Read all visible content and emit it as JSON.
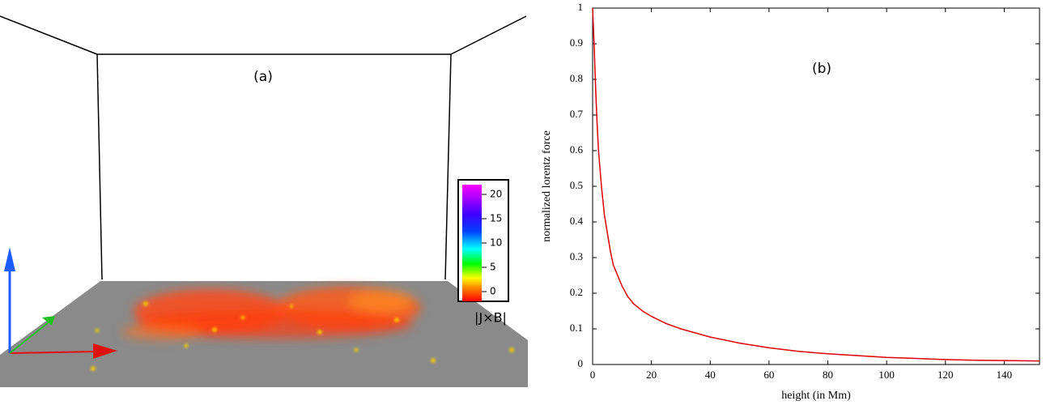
{
  "chart_data": [
    {
      "type": "colorbar",
      "title": "(a)",
      "colorbar_label": "|J×B|",
      "clim": [
        -2,
        22
      ],
      "cticks": [
        0,
        5,
        10,
        15,
        20
      ]
    },
    {
      "type": "line",
      "title": "(b)",
      "x_label": "height (in Mm)",
      "y_label": "normalized lorentz force",
      "x": [
        0,
        0.5,
        1,
        1.5,
        2,
        3,
        4,
        5,
        6,
        7,
        8,
        10,
        12,
        14,
        17,
        20,
        25,
        30,
        40,
        50,
        60,
        70,
        80,
        90,
        100,
        110,
        120,
        130,
        140,
        152
      ],
      "series": [
        {
          "color": "#dd0000",
          "values": [
            1,
            0.9,
            0.78,
            0.68,
            0.6,
            0.5,
            0.42,
            0.37,
            0.32,
            0.28,
            0.26,
            0.22,
            0.19,
            0.17,
            0.15,
            0.135,
            0.115,
            0.1,
            0.077,
            0.06,
            0.047,
            0.037,
            0.03,
            0.025,
            0.02,
            0.017,
            0.014,
            0.012,
            0.011,
            0.01
          ]
        }
      ],
      "xlim": [
        0,
        152
      ],
      "ylim": [
        0,
        1
      ],
      "xticks": [
        0,
        20,
        40,
        60,
        80,
        100,
        120,
        140
      ],
      "yticks": [
        0,
        0.1,
        0.2,
        0.3,
        0.4,
        0.5,
        0.6,
        0.7,
        0.8,
        0.9,
        1
      ]
    }
  ]
}
